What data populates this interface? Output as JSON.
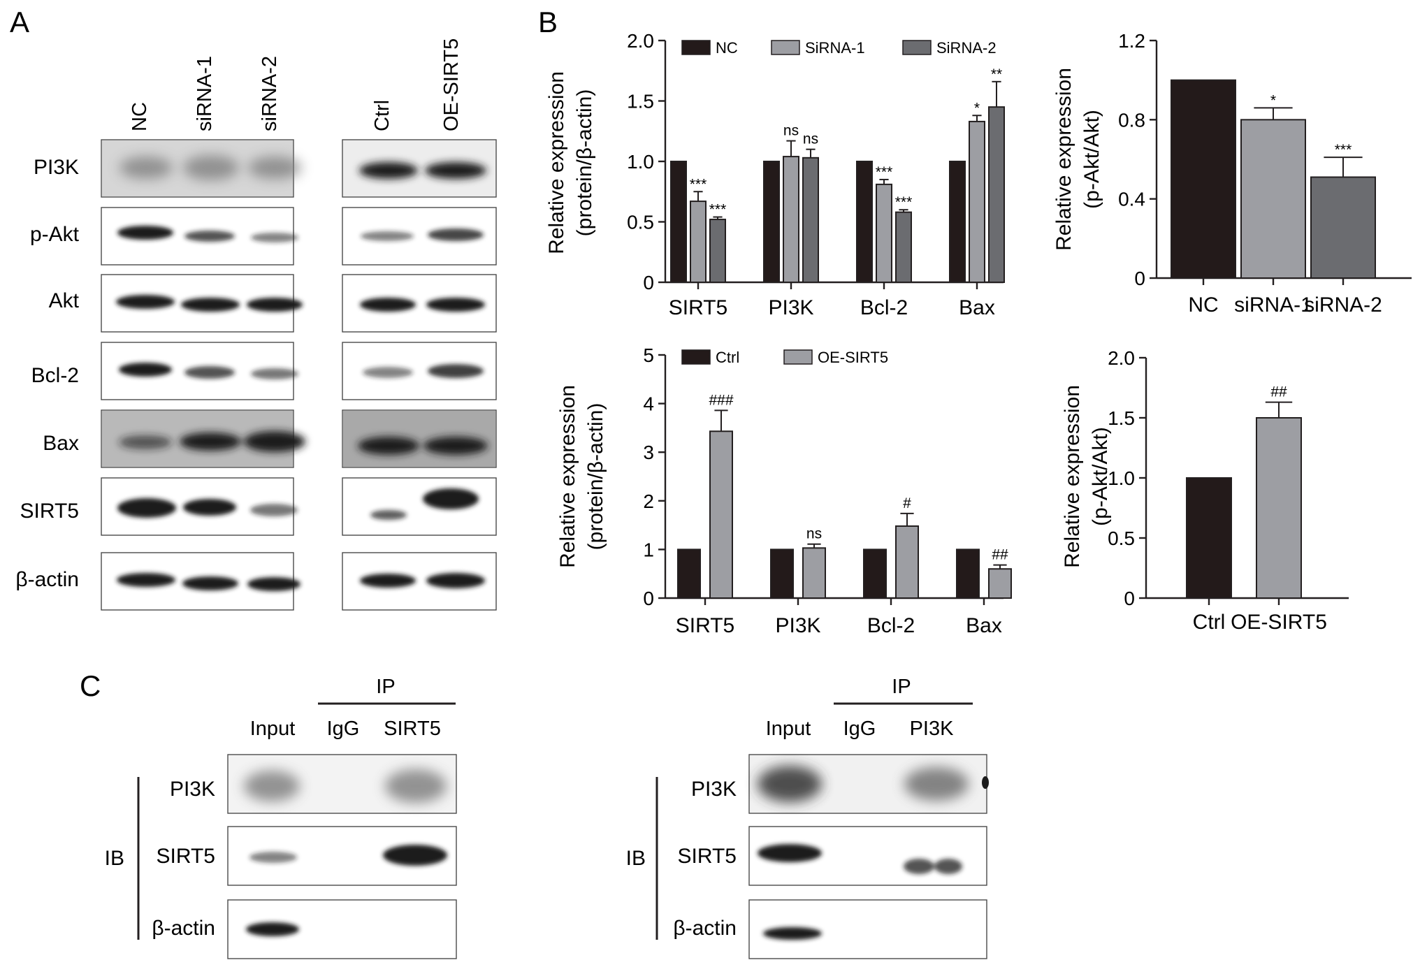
{
  "panels": {
    "a": "A",
    "b": "B",
    "c": "C"
  },
  "colors": {
    "black_bar": "#231a1a",
    "light_gray_bar": "#9d9ea3",
    "dark_gray_bar": "#6b6c70",
    "axis": "#231f20",
    "band": "#1c1c1c"
  },
  "panel_a": {
    "left_lanes": [
      "NC",
      "siRNA-1",
      "siRNA-2"
    ],
    "right_lanes": [
      "Ctrl",
      "OE-SIRT5"
    ],
    "rows": [
      "PI3K",
      "p-Akt",
      "Akt",
      "Bcl-2",
      "Bax",
      "SIRT5",
      "β-actin"
    ]
  },
  "panel_c": {
    "ib_label": "IB",
    "ip_label": "IP",
    "left": {
      "lanes": [
        "Input",
        "IgG",
        "SIRT5"
      ],
      "rows": [
        "PI3K",
        "SIRT5",
        "β-actin"
      ]
    },
    "right": {
      "lanes": [
        "Input",
        "IgG",
        "PI3K"
      ],
      "rows": [
        "PI3K",
        "SIRT5",
        "β-actin"
      ]
    }
  },
  "chart_data": [
    {
      "type": "bar",
      "ylabel": "Relative expression (protein/β-actin)",
      "ylabel_lines": [
        "Relative expression",
        "(protein/β-actin)"
      ],
      "categories": [
        "SIRT5",
        "PI3K",
        "Bcl-2",
        "Bax"
      ],
      "ylim": [
        0,
        2.0
      ],
      "yticks": [
        "0",
        "0.5",
        "1.0",
        "1.5",
        "2.0"
      ],
      "legend": [
        "NC",
        "SiRNA-1",
        "SiRNA-2"
      ],
      "legend_placement": "top",
      "series": [
        {
          "name": "NC",
          "values": [
            1.0,
            1.0,
            1.0,
            1.0
          ],
          "errors": [
            0,
            0,
            0,
            0
          ],
          "sig": [
            "",
            "",
            "",
            ""
          ]
        },
        {
          "name": "SiRNA-1",
          "values": [
            0.67,
            1.04,
            0.81,
            1.33
          ],
          "errors": [
            0.08,
            0.13,
            0.04,
            0.05
          ],
          "sig": [
            "***",
            "ns",
            "***",
            "*"
          ]
        },
        {
          "name": "SiRNA-2",
          "values": [
            0.52,
            1.03,
            0.58,
            1.45
          ],
          "errors": [
            0.02,
            0.07,
            0.02,
            0.21
          ],
          "sig": [
            "***",
            "ns",
            "***",
            "**"
          ]
        }
      ]
    },
    {
      "type": "bar",
      "ylabel": "Relative expression (p-Akt/Akt)",
      "ylabel_lines": [
        "Relative expression",
        "(p-Akt/Akt)"
      ],
      "categories": [
        "NC",
        "siRNA-1",
        "siRNA-2"
      ],
      "ylim": [
        0,
        1.2
      ],
      "yticks": [
        "0",
        "0.4",
        "0.8",
        "1.2"
      ],
      "series": [
        {
          "values": [
            1.0,
            0.8,
            0.51
          ],
          "errors": [
            0,
            0.06,
            0.1
          ],
          "sig": [
            "",
            "*",
            "***"
          ]
        }
      ]
    },
    {
      "type": "bar",
      "ylabel": "Relative expression (protein/β-actin)",
      "ylabel_lines": [
        "Relative expression",
        "(protein/β-actin)"
      ],
      "categories": [
        "SIRT5",
        "PI3K",
        "Bcl-2",
        "Bax"
      ],
      "ylim": [
        0,
        5
      ],
      "yticks": [
        "0",
        "1",
        "2",
        "3",
        "4",
        "5"
      ],
      "legend": [
        "Ctrl",
        "OE-SIRT5"
      ],
      "legend_placement": "top",
      "series": [
        {
          "name": "Ctrl",
          "values": [
            1,
            1,
            1,
            1
          ],
          "errors": [
            0,
            0,
            0,
            0
          ],
          "sig": [
            "",
            "",
            "",
            ""
          ]
        },
        {
          "name": "OE-SIRT5",
          "values": [
            3.43,
            1.03,
            1.48,
            0.6
          ],
          "errors": [
            0.43,
            0.08,
            0.26,
            0.08
          ],
          "sig": [
            "###",
            "ns",
            "#",
            "##"
          ]
        }
      ]
    },
    {
      "type": "bar",
      "ylabel": "Relative expression (p-Akt/Akt)",
      "ylabel_lines": [
        "Relative expression",
        "(p-Akt/Akt)"
      ],
      "categories": [
        "Ctrl",
        "OE-SIRT5"
      ],
      "ylim": [
        0,
        2.0
      ],
      "yticks": [
        "0",
        "0.5",
        "1.0",
        "1.5",
        "2.0"
      ],
      "series": [
        {
          "values": [
            1.0,
            1.5
          ],
          "errors": [
            0,
            0.13
          ],
          "sig": [
            "",
            "##"
          ]
        }
      ]
    }
  ]
}
